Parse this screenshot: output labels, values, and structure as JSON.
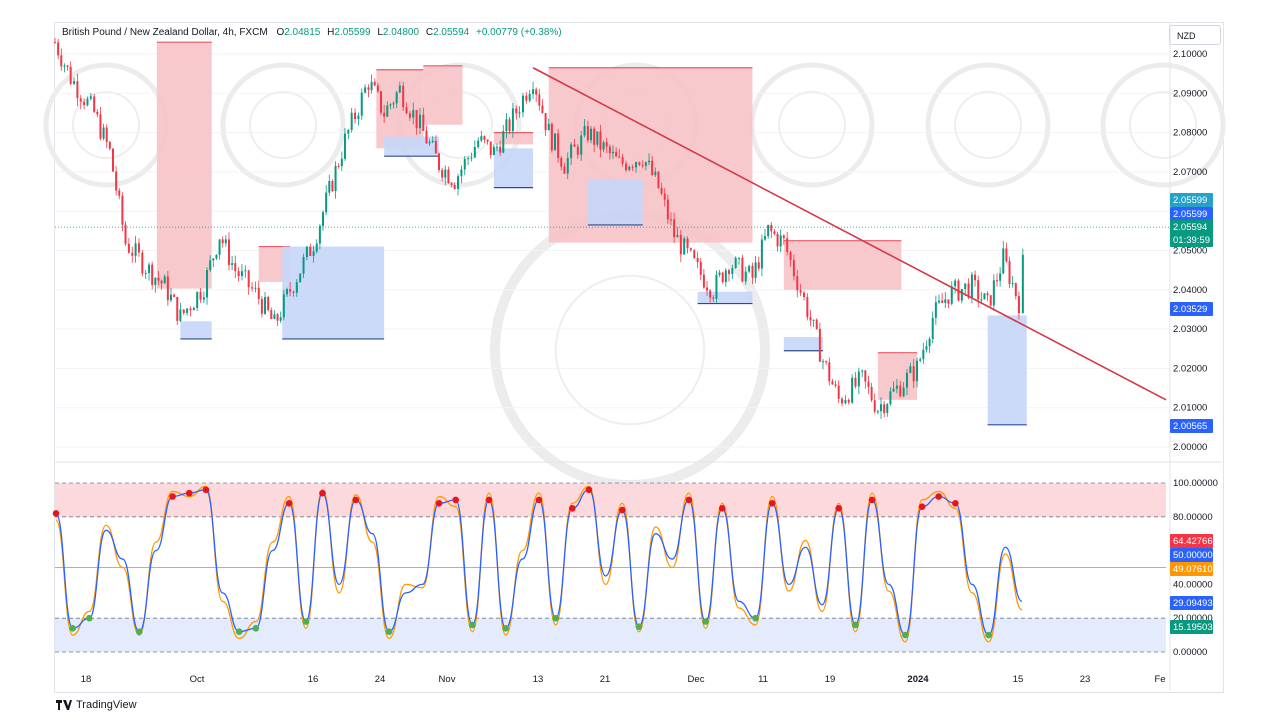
{
  "header": {
    "symbol": "British Pound / New Zealand Dollar, 4h, FXCM",
    "open_label": "O",
    "open": "2.04815",
    "high_label": "H",
    "high": "2.05599",
    "low_label": "L",
    "low": "2.04800",
    "close_label": "C",
    "close": "2.05594",
    "change": "+0.00779 (+0.38%)"
  },
  "currency_button": "NZD",
  "branding": "TradingView",
  "colors": {
    "up": "#089981",
    "down": "#f23645",
    "supply_zone": "#f7c3c6",
    "demand_zone": "#c5d6f8",
    "trendline": "#d43845",
    "stoch_k": "#2962ff",
    "stoch_d": "#ff9800"
  },
  "chart_data": [
    {
      "type": "line",
      "panel": "price",
      "y_axis_ticks": [
        "2.10000",
        "2.09000",
        "2.08000",
        "2.07000",
        "2.06000",
        "2.05000",
        "2.04000",
        "2.03000",
        "2.02000",
        "2.01000",
        "2.00000"
      ],
      "ylim": [
        1.998,
        2.108
      ],
      "x_axis_ticks": [
        "18",
        "Oct",
        "16",
        "24",
        "Nov",
        "13",
        "21",
        "Dec",
        "11",
        "19",
        "2024",
        "15",
        "23",
        "Fe"
      ],
      "close_series": [
        {
          "x": "Sep 13",
          "y": 2.103
        },
        {
          "x": "Sep 15",
          "y": 2.094
        },
        {
          "x": "Sep 18",
          "y": 2.085
        },
        {
          "x": "Sep 20",
          "y": 2.075
        },
        {
          "x": "Sep 22",
          "y": 2.052
        },
        {
          "x": "Sep 25",
          "y": 2.045
        },
        {
          "x": "Sep 27",
          "y": 2.041
        },
        {
          "x": "Sep 29",
          "y": 2.033
        },
        {
          "x": "Oct 2",
          "y": 2.041
        },
        {
          "x": "Oct 4",
          "y": 2.054
        },
        {
          "x": "Oct 6",
          "y": 2.045
        },
        {
          "x": "Oct 9",
          "y": 2.038
        },
        {
          "x": "Oct 11",
          "y": 2.031
        },
        {
          "x": "Oct 13",
          "y": 2.04
        },
        {
          "x": "Oct 16",
          "y": 2.052
        },
        {
          "x": "Oct 18",
          "y": 2.065
        },
        {
          "x": "Oct 20",
          "y": 2.078
        },
        {
          "x": "Oct 23",
          "y": 2.093
        },
        {
          "x": "Oct 25",
          "y": 2.085
        },
        {
          "x": "Oct 27",
          "y": 2.091
        },
        {
          "x": "Oct 30",
          "y": 2.08
        },
        {
          "x": "Nov 1",
          "y": 2.072
        },
        {
          "x": "Nov 3",
          "y": 2.068
        },
        {
          "x": "Nov 6",
          "y": 2.078
        },
        {
          "x": "Nov 8",
          "y": 2.075
        },
        {
          "x": "Nov 10",
          "y": 2.082
        },
        {
          "x": "Nov 13",
          "y": 2.094
        },
        {
          "x": "Nov 15",
          "y": 2.08
        },
        {
          "x": "Nov 17",
          "y": 2.072
        },
        {
          "x": "Nov 20",
          "y": 2.08
        },
        {
          "x": "Nov 22",
          "y": 2.076
        },
        {
          "x": "Nov 24",
          "y": 2.072
        },
        {
          "x": "Nov 27",
          "y": 2.074
        },
        {
          "x": "Nov 29",
          "y": 2.066
        },
        {
          "x": "Dec 1",
          "y": 2.054
        },
        {
          "x": "Dec 4",
          "y": 2.045
        },
        {
          "x": "Dec 6",
          "y": 2.04
        },
        {
          "x": "Dec 8",
          "y": 2.047
        },
        {
          "x": "Dec 11",
          "y": 2.043
        },
        {
          "x": "Dec 13",
          "y": 2.055
        },
        {
          "x": "Dec 15",
          "y": 2.052
        },
        {
          "x": "Dec 18",
          "y": 2.035
        },
        {
          "x": "Dec 20",
          "y": 2.022
        },
        {
          "x": "Dec 22",
          "y": 2.012
        },
        {
          "x": "Dec 25",
          "y": 2.017
        },
        {
          "x": "Dec 27",
          "y": 2.01
        },
        {
          "x": "Dec 29",
          "y": 2.014
        },
        {
          "x": "Jan 1",
          "y": 2.02
        },
        {
          "x": "Jan 3",
          "y": 2.033
        },
        {
          "x": "Jan 5",
          "y": 2.039
        },
        {
          "x": "Jan 8",
          "y": 2.041
        },
        {
          "x": "Jan 10",
          "y": 2.036
        },
        {
          "x": "Jan 12",
          "y": 2.048
        },
        {
          "x": "Jan 14",
          "y": 2.037
        },
        {
          "x": "Jan 15",
          "y": 2.05594
        }
      ],
      "supply_zones": [
        {
          "x1": "Sep 26",
          "x2": "Oct 3",
          "y1": 2.0403,
          "y2": 2.103
        },
        {
          "x1": "Oct 9",
          "x2": "Oct 13",
          "y1": 2.042,
          "y2": 2.051
        },
        {
          "x1": "Oct 24",
          "x2": "Oct 30",
          "y1": 2.076,
          "y2": 2.096
        },
        {
          "x1": "Oct 30",
          "x2": "Nov 4",
          "y1": 2.082,
          "y2": 2.097
        },
        {
          "x1": "Nov 8",
          "x2": "Nov 13",
          "y1": 2.077,
          "y2": 2.08
        },
        {
          "x1": "Nov 15",
          "x2": "Dec 11",
          "y1": 2.052,
          "y2": 2.0965
        },
        {
          "x1": "Dec 15",
          "x2": "Dec 30",
          "y1": 2.04,
          "y2": 2.0525
        },
        {
          "x1": "Dec 27",
          "x2": "Jan 1",
          "y1": 2.012,
          "y2": 2.024
        }
      ],
      "demand_zones": [
        {
          "x1": "Sep 29",
          "x2": "Oct 3",
          "y1": 2.0275,
          "y2": 2.032
        },
        {
          "x1": "Oct 12",
          "x2": "Oct 25",
          "y1": 2.0275,
          "y2": 2.051
        },
        {
          "x1": "Oct 25",
          "x2": "Nov 1",
          "y1": 2.074,
          "y2": 2.079
        },
        {
          "x1": "Nov 8",
          "x2": "Nov 13",
          "y1": 2.066,
          "y2": 2.076
        },
        {
          "x1": "Nov 20",
          "x2": "Nov 27",
          "y1": 2.0565,
          "y2": 2.068
        },
        {
          "x1": "Dec 4",
          "x2": "Dec 11",
          "y1": 2.0365,
          "y2": 2.0395
        },
        {
          "x1": "Dec 15",
          "x2": "Dec 20",
          "y1": 2.0245,
          "y2": 2.028
        },
        {
          "x1": "Jan 10",
          "x2": "Jan 15",
          "y1": 2.00565,
          "y2": 2.0335
        }
      ],
      "trendline": {
        "x1": "Nov 13",
        "y1": 2.0965,
        "x2": "Feb 1",
        "y2": 2.012
      },
      "dotted_price_line": 2.05594,
      "price_labels": [
        {
          "text": "2.05599",
          "color": "#26a2c9"
        },
        {
          "text": "2.05599",
          "color": "#2962ff"
        },
        {
          "text": "2.05594",
          "color": "#089981"
        },
        {
          "text": "01:39:59",
          "color": "#089981"
        },
        {
          "text": "2.03529",
          "color": "#2962ff"
        },
        {
          "text": "2.00565",
          "color": "#2962ff"
        }
      ]
    },
    {
      "type": "line",
      "panel": "stochastic",
      "y_axis_ticks": [
        "100.00000",
        "80.00000",
        "40.00000",
        "20.00000",
        "0.00000"
      ],
      "ylim": [
        0,
        100
      ],
      "overbought": 80,
      "oversold": 20,
      "midline": 50,
      "series": [
        {
          "color": "#2962ff",
          "values": [
            82,
            14,
            20,
            72,
            55,
            12,
            60,
            92,
            94,
            96,
            35,
            12,
            14,
            60,
            88,
            18,
            94,
            40,
            90,
            70,
            12,
            35,
            40,
            88,
            90,
            16,
            90,
            14,
            55,
            90,
            20,
            85,
            96,
            45,
            84,
            15,
            70,
            55,
            90,
            18,
            85,
            30,
            20,
            88,
            40,
            62,
            28,
            85,
            16,
            90,
            40,
            10,
            86,
            92,
            88,
            40,
            10,
            62,
            30
          ]
        },
        {
          "color": "#ff9800",
          "values": [
            78,
            10,
            24,
            75,
            50,
            10,
            65,
            95,
            92,
            98,
            30,
            8,
            18,
            65,
            92,
            14,
            96,
            35,
            93,
            65,
            8,
            40,
            38,
            92,
            86,
            12,
            94,
            10,
            60,
            94,
            16,
            88,
            98,
            40,
            88,
            12,
            74,
            50,
            94,
            14,
            88,
            26,
            16,
            92,
            36,
            66,
            24,
            88,
            12,
            94,
            36,
            6,
            90,
            95,
            85,
            35,
            6,
            58,
            25
          ]
        }
      ],
      "value_labels": [
        {
          "text": "64.42766",
          "color": "#f23645"
        },
        {
          "text": "50.00000",
          "color": "#2962ff"
        },
        {
          "text": "49.07610",
          "color": "#ff9800"
        },
        {
          "text": "29.09493",
          "color": "#2962ff"
        },
        {
          "text": "15.19503",
          "color": "#089981"
        }
      ]
    }
  ]
}
